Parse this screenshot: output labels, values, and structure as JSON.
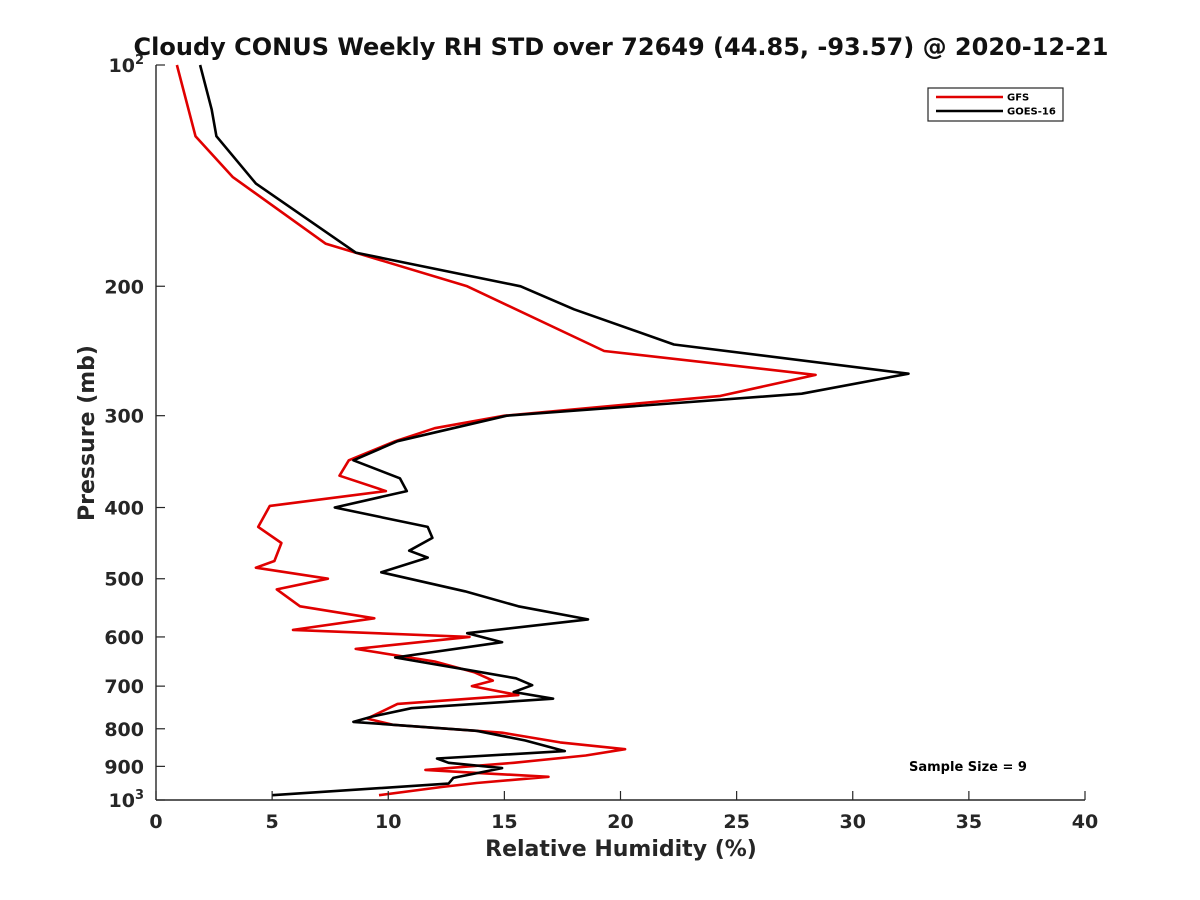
{
  "chart_data": {
    "type": "line",
    "title": "Cloudy CONUS Weekly RH STD over 72649 (44.85, -93.57) @ 2020-12-21",
    "xlabel": "Relative Humidity (%)",
    "ylabel": "Pressure (mb)",
    "xlim": [
      0,
      40
    ],
    "ylim": [
      100,
      1000
    ],
    "y_scale": "log",
    "y_reversed": true,
    "x_ticks": [
      0,
      5,
      10,
      15,
      20,
      25,
      30,
      35,
      40
    ],
    "x_tick_labels": [
      "0",
      "5",
      "10",
      "15",
      "20",
      "25",
      "30",
      "35",
      "40"
    ],
    "y_ticks": [
      100,
      200,
      300,
      400,
      500,
      600,
      700,
      800,
      900,
      1000
    ],
    "y_tick_labels": [
      {
        "base": "10",
        "sup": "2"
      },
      {
        "base": "200",
        "sup": ""
      },
      {
        "base": "300",
        "sup": ""
      },
      {
        "base": "400",
        "sup": ""
      },
      {
        "base": "500",
        "sup": ""
      },
      {
        "base": "600",
        "sup": ""
      },
      {
        "base": "700",
        "sup": ""
      },
      {
        "base": "800",
        "sup": ""
      },
      {
        "base": "900",
        "sup": ""
      },
      {
        "base": "10",
        "sup": "3"
      }
    ],
    "grid": false,
    "legend_position": "top-right",
    "annotation": "Sample Size = 9",
    "series": [
      {
        "name": "GFS",
        "color": "#e00000",
        "points": [
          [
            0.9,
            100
          ],
          [
            1.7,
            125
          ],
          [
            3.3,
            142
          ],
          [
            7.3,
            175
          ],
          [
            13.4,
            200
          ],
          [
            19.3,
            245
          ],
          [
            28.4,
            264
          ],
          [
            24.3,
            282
          ],
          [
            15.0,
            300
          ],
          [
            12.0,
            312
          ],
          [
            10.3,
            325
          ],
          [
            8.3,
            345
          ],
          [
            7.9,
            362
          ],
          [
            9.9,
            380
          ],
          [
            4.9,
            398
          ],
          [
            4.4,
            425
          ],
          [
            5.4,
            447
          ],
          [
            5.1,
            473
          ],
          [
            4.3,
            483
          ],
          [
            7.4,
            500
          ],
          [
            5.2,
            517
          ],
          [
            6.2,
            545
          ],
          [
            9.4,
            566
          ],
          [
            5.9,
            587
          ],
          [
            13.5,
            600
          ],
          [
            8.6,
            623
          ],
          [
            12.0,
            648
          ],
          [
            13.7,
            670
          ],
          [
            14.5,
            688
          ],
          [
            13.6,
            700
          ],
          [
            15.6,
            720
          ],
          [
            10.4,
            740
          ],
          [
            9.1,
            775
          ],
          [
            10.2,
            790
          ],
          [
            14.9,
            810
          ],
          [
            17.4,
            835
          ],
          [
            20.2,
            853
          ],
          [
            18.5,
            870
          ],
          [
            15.4,
            890
          ],
          [
            11.6,
            910
          ],
          [
            14.2,
            920
          ],
          [
            16.9,
            930
          ],
          [
            13.8,
            948
          ],
          [
            12.3,
            960
          ],
          [
            9.6,
            985
          ]
        ]
      },
      {
        "name": "GOES-16",
        "color": "#000000",
        "points": [
          [
            1.9,
            100
          ],
          [
            2.4,
            115
          ],
          [
            2.6,
            125
          ],
          [
            4.3,
            145
          ],
          [
            8.6,
            180
          ],
          [
            15.7,
            200
          ],
          [
            18.0,
            215
          ],
          [
            22.3,
            240
          ],
          [
            32.4,
            263
          ],
          [
            27.8,
            280
          ],
          [
            15.1,
            300
          ],
          [
            10.4,
            325
          ],
          [
            8.5,
            345
          ],
          [
            10.5,
            365
          ],
          [
            10.8,
            380
          ],
          [
            7.7,
            400
          ],
          [
            11.7,
            425
          ],
          [
            11.9,
            440
          ],
          [
            10.9,
            458
          ],
          [
            11.7,
            468
          ],
          [
            9.7,
            490
          ],
          [
            13.3,
            520
          ],
          [
            15.6,
            545
          ],
          [
            18.6,
            568
          ],
          [
            13.4,
            593
          ],
          [
            14.9,
            610
          ],
          [
            10.3,
            640
          ],
          [
            13.4,
            665
          ],
          [
            15.5,
            683
          ],
          [
            16.2,
            698
          ],
          [
            15.4,
            713
          ],
          [
            17.1,
            728
          ],
          [
            11.0,
            750
          ],
          [
            9.3,
            770
          ],
          [
            8.5,
            783
          ],
          [
            13.8,
            805
          ],
          [
            15.9,
            830
          ],
          [
            17.6,
            858
          ],
          [
            12.1,
            878
          ],
          [
            12.6,
            890
          ],
          [
            14.9,
            905
          ],
          [
            12.8,
            933
          ],
          [
            12.6,
            950
          ],
          [
            5.0,
            985
          ]
        ]
      }
    ]
  }
}
